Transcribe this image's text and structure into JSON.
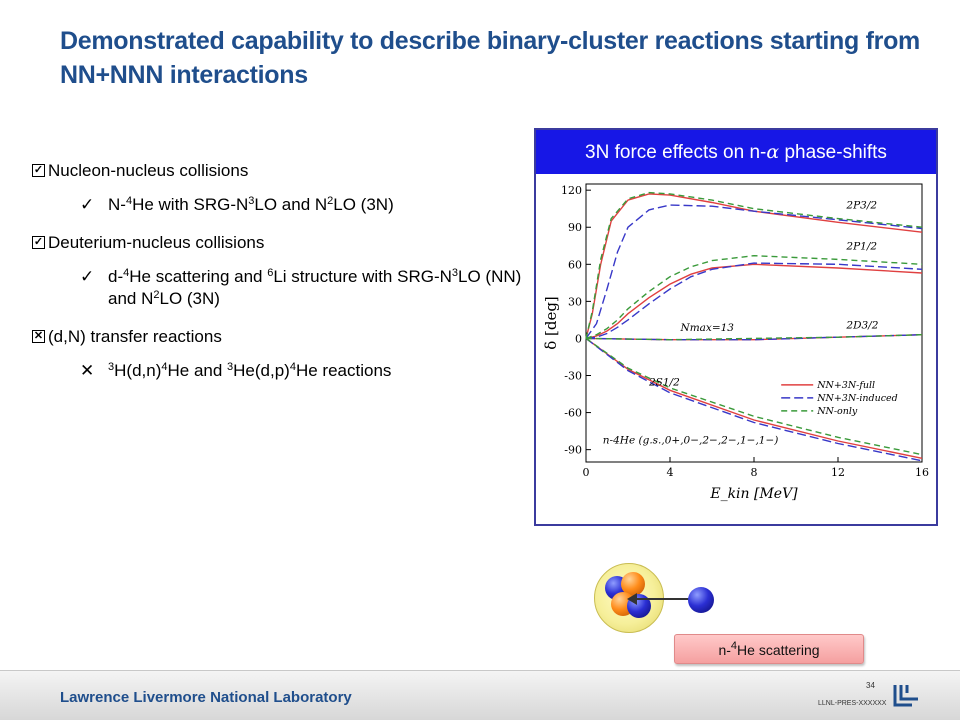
{
  "slide": {
    "title": "Demonstrated capability to describe binary-cluster reactions starting from NN+NNN interactions"
  },
  "bullets": [
    {
      "marker": "☑",
      "text": "Nucleon-nucleus collisions",
      "sub": {
        "marker": "✓",
        "parts": [
          "N-",
          "4",
          "He with SRG-N",
          "3",
          "LO and N",
          "2",
          "LO (3N)"
        ]
      }
    },
    {
      "marker": "☑",
      "text": "Deuterium-nucleus collisions",
      "sub": {
        "marker": "✓",
        "parts": [
          "d-",
          "4",
          "He scattering and ",
          "6",
          "Li structure with SRG-N",
          "3",
          "LO (NN) and N",
          "2",
          "LO (3N)"
        ]
      }
    },
    {
      "marker": "☒",
      "text": "(d,N) transfer reactions",
      "sub": {
        "marker": "✕",
        "parts": [
          "",
          "3",
          "H(d,n)",
          "4",
          "He and ",
          "3",
          "He(d,p)",
          "4",
          "He reactions"
        ]
      }
    }
  ],
  "panel": {
    "title_pre": "3N force effects on n-",
    "title_symbol": "α",
    "title_post": " phase-shifts"
  },
  "chart_data": {
    "type": "line",
    "xlabel": "E_kin [MeV]",
    "ylabel": "δ [deg]",
    "xlim": [
      0,
      16
    ],
    "ylim": [
      -100,
      125
    ],
    "x_ticks": [
      "0",
      "4",
      "8",
      "12",
      "16"
    ],
    "y_ticks": [
      "120",
      "90",
      "60",
      "30",
      "0",
      "-30",
      "-60",
      "-90"
    ],
    "legend": [
      "NN+3N-full",
      "NN+3N-induced",
      "NN-only"
    ],
    "legend_position": "lower-right",
    "annotations": [
      "2P3/2",
      "2P1/2",
      "2D3/2",
      "2S1/2",
      "Nmax=13",
      "n-4He (g.s.,0+,0−,2−,2−,1−,1−)"
    ],
    "series": [
      {
        "name": "NN+3N-full",
        "color": "#e04040",
        "dash": "solid",
        "curves": [
          {
            "label": "2P3/2",
            "x": [
              0,
              0.3,
              0.7,
              1.2,
              2,
              3,
              4,
              6,
              8,
              12,
              16
            ],
            "y": [
              0,
              20,
              60,
              95,
              112,
              117,
              116,
              110,
              103,
              94,
              86
            ]
          },
          {
            "label": "2P1/2",
            "x": [
              0,
              0.5,
              1,
              1.5,
              2,
              3,
              4,
              5,
              6,
              8,
              12,
              16
            ],
            "y": [
              0,
              2,
              6,
              12,
              20,
              33,
              44,
              52,
              57,
              60,
              57,
              53
            ]
          },
          {
            "label": "2D3/2",
            "x": [
              0,
              4,
              8,
              12,
              16
            ],
            "y": [
              0,
              -1,
              -1,
              1,
              3
            ]
          },
          {
            "label": "2S1/2",
            "x": [
              0,
              2,
              4,
              8,
              12,
              16
            ],
            "y": [
              0,
              -25,
              -42,
              -66,
              -83,
              -97
            ]
          }
        ]
      },
      {
        "name": "NN+3N-induced",
        "color": "#3838c8",
        "dash": "long-dash",
        "curves": [
          {
            "label": "2P3/2",
            "x": [
              0,
              0.5,
              1,
              1.5,
              2,
              3,
              4,
              6,
              8,
              12,
              16
            ],
            "y": [
              0,
              12,
              40,
              70,
              90,
              104,
              108,
              107,
              103,
              96,
              89
            ]
          },
          {
            "label": "2P1/2",
            "x": [
              0,
              0.5,
              1,
              1.5,
              2,
              3,
              4,
              5,
              6,
              8,
              12,
              16
            ],
            "y": [
              0,
              1,
              4,
              9,
              15,
              28,
              40,
              50,
              56,
              61,
              60,
              56
            ]
          },
          {
            "label": "2D3/2",
            "x": [
              0,
              4,
              8,
              12,
              16
            ],
            "y": [
              0,
              -1,
              -1,
              1,
              3
            ]
          },
          {
            "label": "2S1/2",
            "x": [
              0,
              2,
              4,
              8,
              12,
              16
            ],
            "y": [
              0,
              -26,
              -44,
              -68,
              -85,
              -99
            ]
          }
        ]
      },
      {
        "name": "NN-only",
        "color": "#3a9a3a",
        "dash": "dash",
        "curves": [
          {
            "label": "2P3/2",
            "x": [
              0,
              0.3,
              0.7,
              1.2,
              2,
              3,
              4,
              6,
              8,
              12,
              16
            ],
            "y": [
              0,
              22,
              64,
              97,
              113,
              118,
              117,
              112,
              105,
              97,
              90
            ]
          },
          {
            "label": "2P1/2",
            "x": [
              0,
              0.5,
              1,
              1.5,
              2,
              3,
              4,
              5,
              6,
              8,
              12,
              16
            ],
            "y": [
              0,
              3,
              8,
              15,
              24,
              38,
              50,
              58,
              63,
              67,
              64,
              60
            ]
          },
          {
            "label": "2D3/2",
            "x": [
              0,
              4,
              8,
              12,
              16
            ],
            "y": [
              0,
              -1,
              0,
              1,
              3
            ]
          },
          {
            "label": "2S1/2",
            "x": [
              0,
              2,
              4,
              8,
              12,
              16
            ],
            "y": [
              0,
              -24,
              -40,
              -63,
              -80,
              -94
            ]
          }
        ]
      }
    ]
  },
  "illustration": {
    "label_parts": [
      "n-",
      "4",
      "He scattering"
    ]
  },
  "footer": {
    "lab": "Lawrence Livermore National Laboratory",
    "page": "34",
    "id": "LLNL-PRES-XXXXXX"
  }
}
